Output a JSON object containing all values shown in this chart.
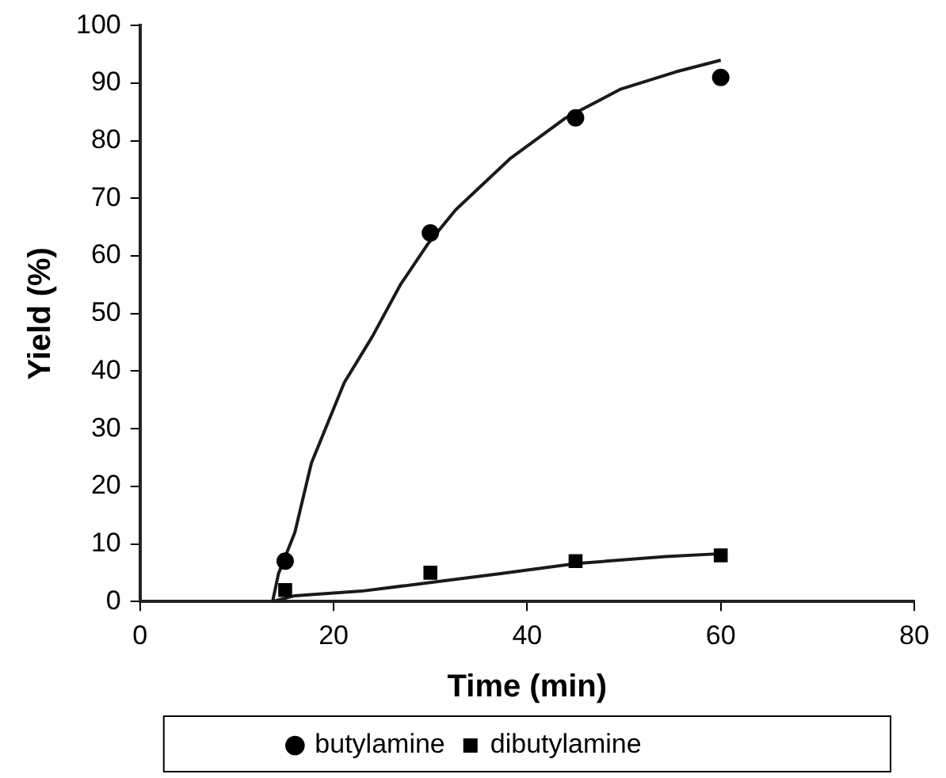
{
  "chart_data": {
    "type": "scatter",
    "xlabel": "Time (min)",
    "ylabel": "Yield (%)",
    "xlim": [
      0,
      80
    ],
    "xticks": [
      0,
      20,
      40,
      60,
      80
    ],
    "ylim": [
      0,
      100
    ],
    "yticks": [
      0,
      10,
      20,
      30,
      40,
      50,
      60,
      70,
      80,
      90,
      100
    ],
    "grid": false,
    "legend": "bottom",
    "series": [
      {
        "name": "butylamine",
        "color": "#000000",
        "marker": "circle",
        "x": [
          15,
          30,
          45,
          60
        ],
        "values": [
          7,
          64,
          84,
          91
        ]
      },
      {
        "name": "dibutylamine",
        "color": "#000000",
        "marker": "square",
        "x": [
          15,
          30,
          45,
          60
        ],
        "values": [
          2,
          5,
          7,
          8
        ]
      },
      {
        "type": "line",
        "color": "#1a1a1a",
        "marker": "none",
        "line_style": "solid",
        "x": [
          13.7,
          14.3,
          16,
          17.7,
          21.1,
          24,
          26.9,
          29.7,
          32.6,
          38.3,
          44,
          49.7,
          55.4,
          60
        ],
        "values": [
          0,
          4.8,
          12,
          24,
          38,
          46,
          55,
          62,
          68,
          77,
          84,
          89,
          92,
          94
        ]
      },
      {
        "type": "line",
        "color": "#1a1a1a",
        "marker": "none",
        "line_style": "solid",
        "x": [
          13.7,
          16,
          22.9,
          30,
          37.1,
          45.1,
          54.3,
          60
        ],
        "values": [
          0,
          1,
          1.8,
          3.3,
          4.8,
          6.6,
          7.8,
          8.3
        ]
      }
    ]
  }
}
